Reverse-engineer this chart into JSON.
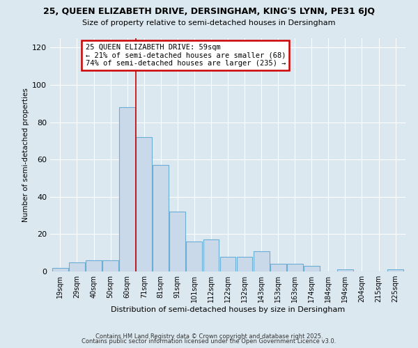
{
  "title": "25, QUEEN ELIZABETH DRIVE, DERSINGHAM, KING'S LYNN, PE31 6JQ",
  "subtitle": "Size of property relative to semi-detached houses in Dersingham",
  "xlabel": "Distribution of semi-detached houses by size in Dersingham",
  "ylabel": "Number of semi-detached properties",
  "categories": [
    "19sqm",
    "29sqm",
    "40sqm",
    "50sqm",
    "60sqm",
    "71sqm",
    "81sqm",
    "91sqm",
    "101sqm",
    "112sqm",
    "122sqm",
    "132sqm",
    "143sqm",
    "153sqm",
    "163sqm",
    "174sqm",
    "184sqm",
    "194sqm",
    "204sqm",
    "215sqm",
    "225sqm"
  ],
  "values": [
    2,
    5,
    6,
    6,
    88,
    72,
    57,
    32,
    16,
    17,
    8,
    8,
    11,
    4,
    4,
    3,
    0,
    1,
    0,
    0,
    1
  ],
  "bar_color": "#c9d9ea",
  "bar_edge_color": "#6aaed6",
  "bar_edge_width": 0.8,
  "red_line_x": 4.5,
  "annotation_title": "25 QUEEN ELIZABETH DRIVE: 59sqm",
  "annotation_line1": "← 21% of semi-detached houses are smaller (68)",
  "annotation_line2": "74% of semi-detached houses are larger (235) →",
  "annotation_box_color": "#ffffff",
  "annotation_box_edge_color": "#cc0000",
  "red_line_color": "#cc0000",
  "ylim": [
    0,
    125
  ],
  "yticks": [
    0,
    20,
    40,
    60,
    80,
    100,
    120
  ],
  "fig_bg_color": "#dce8f0",
  "plot_bg_color": "#dce8f0",
  "footer1": "Contains HM Land Registry data © Crown copyright and database right 2025.",
  "footer2": "Contains public sector information licensed under the Open Government Licence v3.0."
}
